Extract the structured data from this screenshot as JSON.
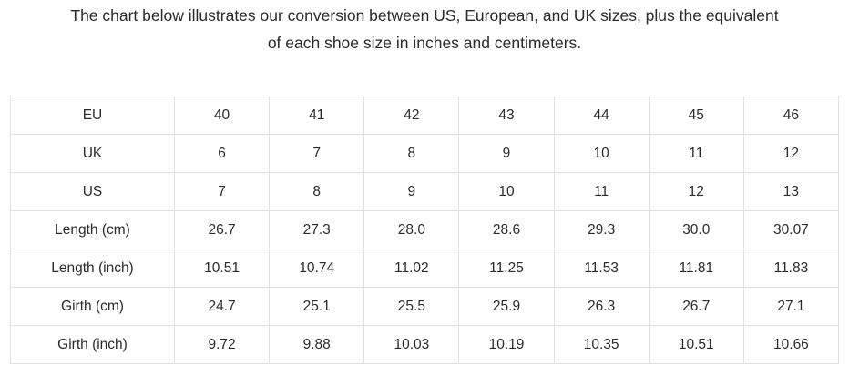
{
  "intro": {
    "line1": "The chart below illustrates our conversion between US, European, and UK sizes, plus the equivalent",
    "line2": "of each shoe size in inches and centimeters.",
    "full_text": "The chart below illustrates our conversion between US, European, and UK sizes, plus the equivalent of each shoe size in inches and centimeters."
  },
  "table": {
    "rows": [
      {
        "label": "EU",
        "values": [
          "40",
          "41",
          "42",
          "43",
          "44",
          "45",
          "46"
        ]
      },
      {
        "label": "UK",
        "values": [
          "6",
          "7",
          "8",
          "9",
          "10",
          "11",
          "12"
        ]
      },
      {
        "label": "US",
        "values": [
          "7",
          "8",
          "9",
          "10",
          "11",
          "12",
          "13"
        ]
      },
      {
        "label": "Length (cm)",
        "values": [
          "26.7",
          "27.3",
          "28.0",
          "28.6",
          "29.3",
          "30.0",
          "30.07"
        ]
      },
      {
        "label": "Length (inch)",
        "values": [
          "10.51",
          "10.74",
          "11.02",
          "11.25",
          "11.53",
          "11.81",
          "11.83"
        ]
      },
      {
        "label": "Girth (cm)",
        "values": [
          "24.7",
          "25.1",
          "25.5",
          "25.9",
          "26.3",
          "26.7",
          "27.1"
        ]
      },
      {
        "label": "Girth (inch)",
        "values": [
          "9.72",
          "9.88",
          "10.03",
          "10.19",
          "10.35",
          "10.51",
          "10.66"
        ]
      }
    ]
  },
  "colors": {
    "background": "#ffffff",
    "text": "#2b2b2b",
    "table_border": "#e1e1e1"
  }
}
